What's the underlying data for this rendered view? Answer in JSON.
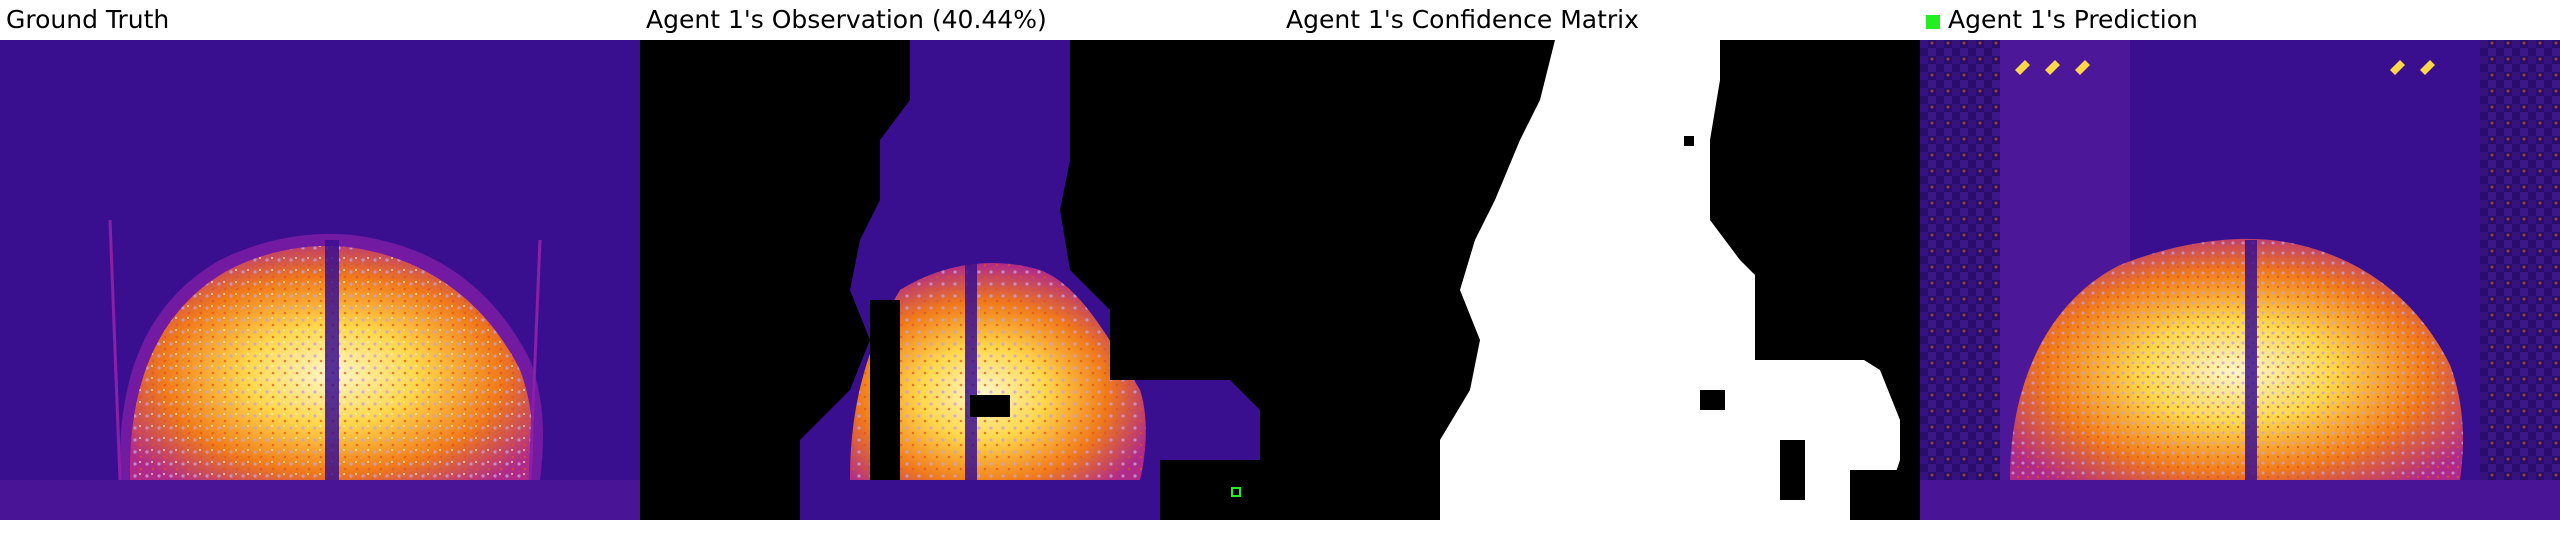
{
  "panels": [
    {
      "title": "Ground Truth"
    },
    {
      "title": "Agent 1's Observation (40.44%)"
    },
    {
      "title": "Agent 1's Confidence Matrix"
    },
    {
      "title": "Agent 1's Prediction",
      "legend_color": "#22ee22"
    }
  ],
  "colors": {
    "background": "#3a0f8f",
    "mid": "#8a1fa8",
    "hot": "#f07a1a",
    "bright": "#ffd84a",
    "white_hot": "#fff6c8",
    "mask": "#000000",
    "confidence_known": "#ffffff",
    "marker": "#22ee22"
  }
}
